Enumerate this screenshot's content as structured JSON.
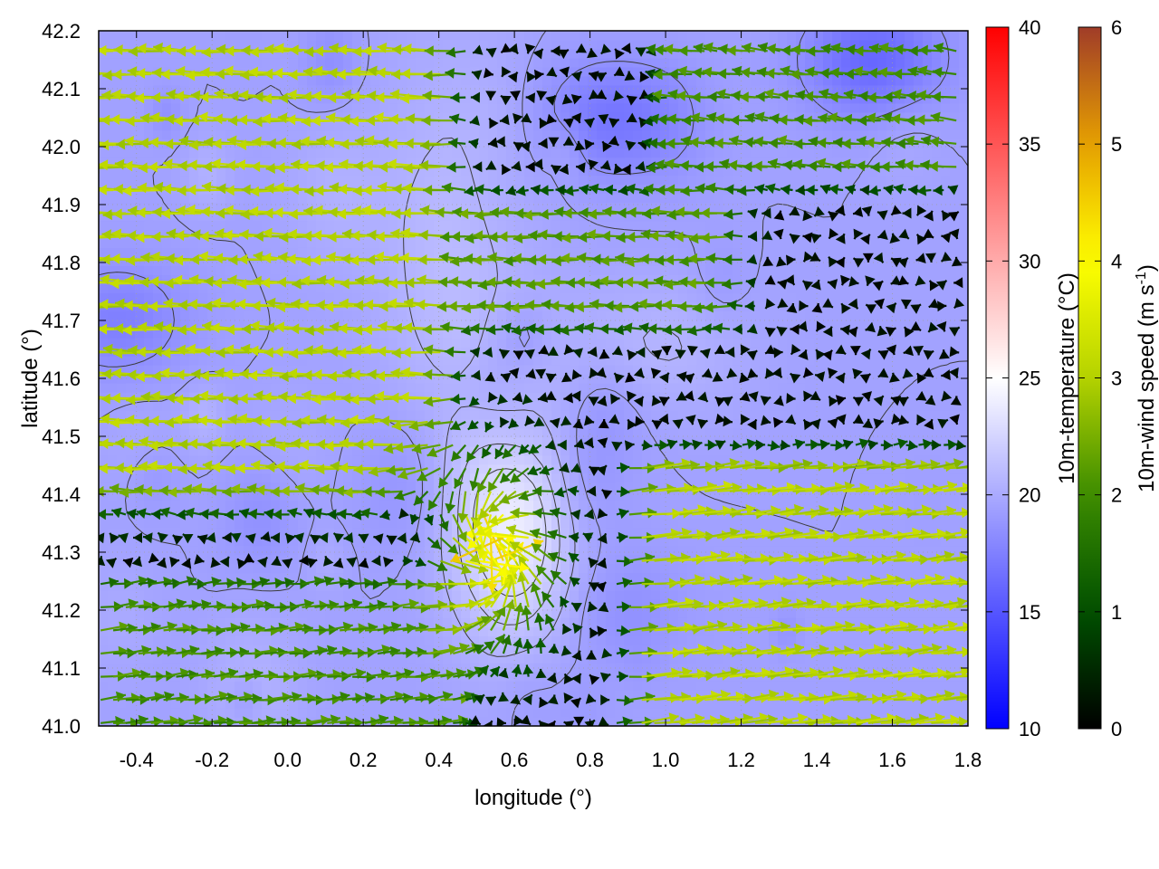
{
  "chart_data": {
    "type": "heatmap",
    "title": "",
    "xlabel": "longitude (°)",
    "ylabel": "latitude (°)",
    "xlim": [
      -0.5,
      1.8
    ],
    "ylim": [
      41.0,
      42.2
    ],
    "x_ticks": [
      "-0.4",
      "-0.2",
      "0.0",
      "0.2",
      "0.4",
      "0.6",
      "0.8",
      "1.0",
      "1.2",
      "1.4",
      "1.6",
      "1.8"
    ],
    "y_ticks": [
      "41.0",
      "41.1",
      "41.2",
      "41.3",
      "41.4",
      "41.5",
      "41.6",
      "41.7",
      "41.8",
      "41.9",
      "42.0",
      "42.1",
      "42.2"
    ],
    "grid": "dotted",
    "temperature_colorbar": {
      "label": "10m-temperature (°C)",
      "range": [
        10,
        40
      ],
      "ticks": [
        "10",
        "15",
        "20",
        "25",
        "30",
        "35",
        "40"
      ],
      "colors": [
        "#0000ff",
        "#ffffff",
        "#ff0000"
      ]
    },
    "wind_colorbar": {
      "label": "10m-wind speed (m s",
      "label_sup": "-1",
      "label_end": ")",
      "range": [
        0,
        6
      ],
      "ticks": [
        "0",
        "1",
        "2",
        "3",
        "4",
        "5",
        "6"
      ],
      "colors": [
        "#000000",
        "#005000",
        "#3c8c00",
        "#b4d200",
        "#ffff00",
        "#e6a000",
        "#a03c28"
      ]
    },
    "temperature_field_description_free": true,
    "warm_center": {
      "lon": 0.6,
      "lat": 41.35,
      "temp": 24
    },
    "cold_regions": [
      {
        "lon": 1.55,
        "lat": 42.15,
        "temp": 16
      },
      {
        "lon": 0.85,
        "lat": 42.05,
        "temp": 17
      },
      {
        "lon": -0.45,
        "lat": 41.7,
        "temp": 17.5
      },
      {
        "lon": 0.9,
        "lat": 41.2,
        "temp": 18.5
      }
    ],
    "background_temp": 19.5,
    "wind": {
      "grid_spacing_deg": [
        0.0333,
        0.04
      ],
      "regimes": [
        {
          "region": "west",
          "lon": [
            -0.5,
            0.35
          ],
          "lat": [
            41.35,
            42.2
          ],
          "u": -3.0,
          "v": 0.1,
          "speed": 3.0
        },
        {
          "region": "central-band",
          "lon": [
            0.6,
            1.1
          ],
          "lat": [
            41.75,
            41.85
          ],
          "u": -2.2,
          "v": 0.0,
          "speed": 2.2
        },
        {
          "region": "northeast",
          "lon": [
            1.1,
            1.8
          ],
          "lat": [
            42.0,
            42.2
          ],
          "u": -2.0,
          "v": 0.2,
          "speed": 2.0
        },
        {
          "region": "southeast",
          "lon": [
            1.0,
            1.8
          ],
          "lat": [
            41.0,
            41.4
          ],
          "u": 3.0,
          "v": 0.3,
          "speed": 3.0
        },
        {
          "region": "southwest",
          "lon": [
            -0.5,
            0.35
          ],
          "lat": [
            41.0,
            41.3
          ],
          "u": 2.0,
          "v": 0.2,
          "speed": 2.0
        },
        {
          "region": "convergence",
          "lon": [
            0.3,
            0.75
          ],
          "lat": [
            41.15,
            41.5
          ],
          "u": 0.0,
          "v": 0.0,
          "speed": 4.5
        }
      ]
    }
  }
}
